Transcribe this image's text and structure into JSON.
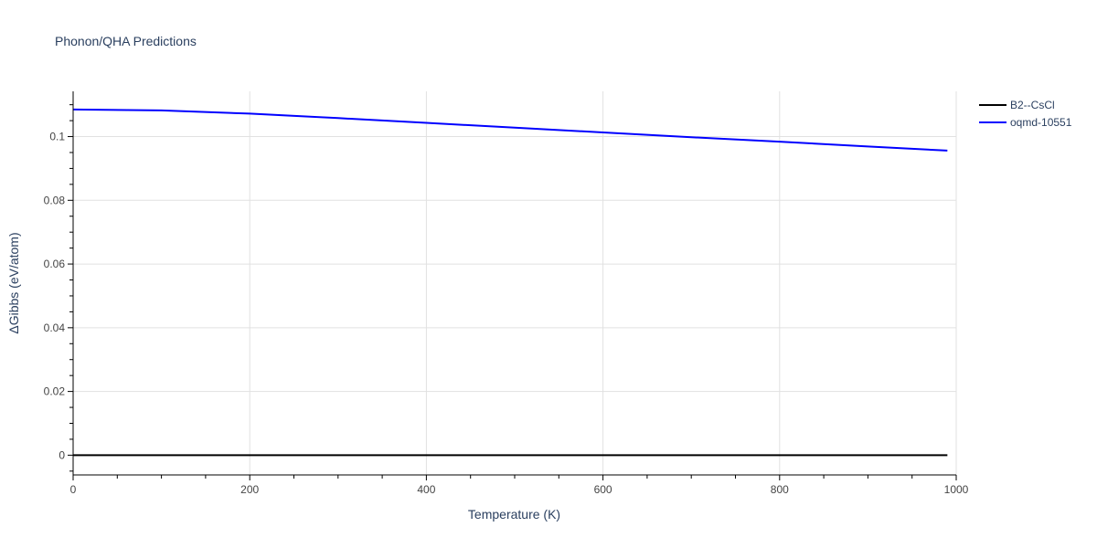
{
  "chart_data": {
    "type": "line",
    "title": "Phonon/QHA Predictions",
    "xlabel": "Temperature (K)",
    "ylabel": "ΔGibbs (eV/atom)",
    "xlim": [
      0,
      1000
    ],
    "ylim": [
      -0.0062,
      0.1142
    ],
    "xticks": [
      0,
      200,
      400,
      600,
      800,
      1000
    ],
    "xtick_labels": [
      "0",
      "200",
      "400",
      "600",
      "800",
      "1000"
    ],
    "yticks": [
      0,
      0.02,
      0.04,
      0.06,
      0.08,
      0.1
    ],
    "ytick_labels": [
      "0",
      "0.02",
      "0.04",
      "0.06",
      "0.08",
      "0.1"
    ],
    "grid": true,
    "legend_position": "top-right",
    "series": [
      {
        "name": "B2--CsCl",
        "color": "#000000",
        "x": [
          0,
          990
        ],
        "y": [
          0,
          0
        ]
      },
      {
        "name": "oqmd-10551",
        "color": "#0000ff",
        "x": [
          0,
          100,
          200,
          300,
          400,
          500,
          600,
          700,
          800,
          900,
          990
        ],
        "y": [
          0.1085,
          0.1082,
          0.1072,
          0.1058,
          0.1043,
          0.1028,
          0.1013,
          0.0998,
          0.0984,
          0.0969,
          0.0956
        ]
      }
    ]
  }
}
